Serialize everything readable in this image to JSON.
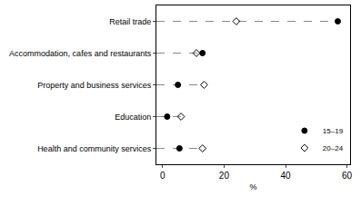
{
  "chart_data": {
    "type": "scatter",
    "orientation": "horizontal",
    "categories": [
      "Retail trade",
      "Accommodation, cafes and restaurants",
      "Property and business services",
      "Education",
      "Health and community services"
    ],
    "series": [
      {
        "name": "15–19",
        "color": "#000000",
        "marker": "circle",
        "values": [
          57,
          13,
          5,
          1.5,
          5.5
        ]
      },
      {
        "name": "20–24",
        "color": "#000000",
        "marker": "diamond-open",
        "values": [
          24,
          11,
          13.5,
          6,
          13
        ]
      }
    ],
    "xlabel": "%",
    "xlim": [
      -2,
      61
    ],
    "xticks": [
      0,
      20,
      40,
      60
    ],
    "grid": false,
    "legend": "bottom right",
    "line_style": "dashed"
  }
}
